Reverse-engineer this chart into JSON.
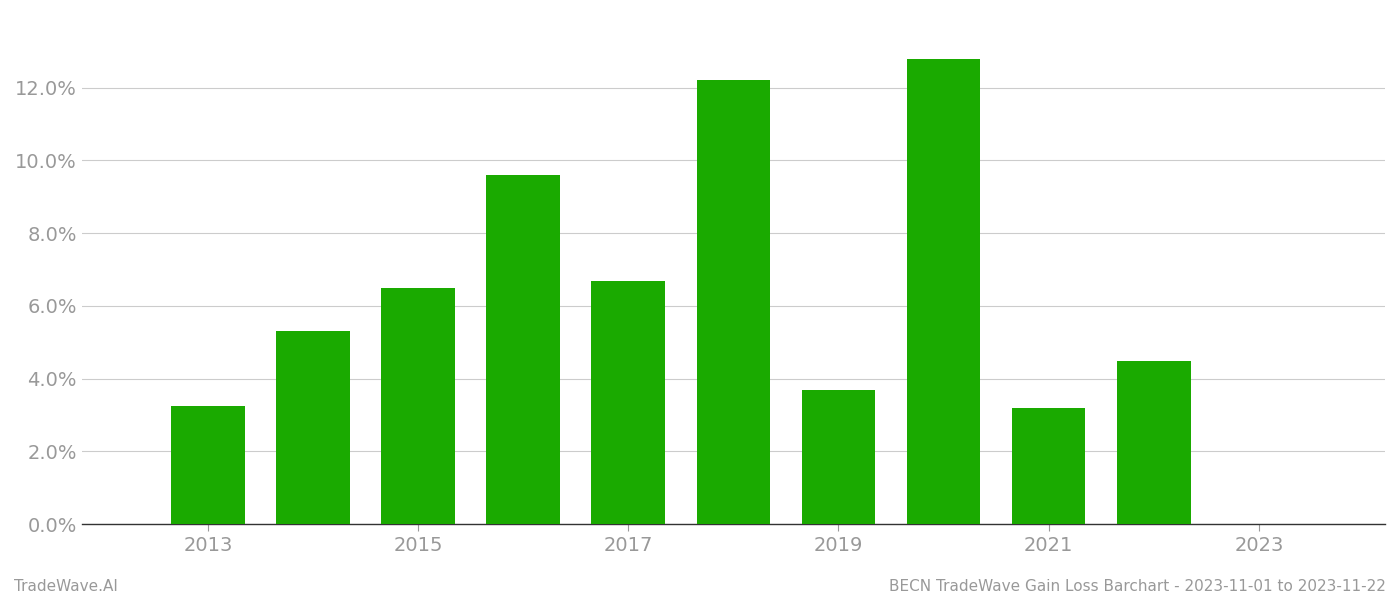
{
  "years": [
    2013,
    2014,
    2015,
    2016,
    2017,
    2018,
    2019,
    2020,
    2021,
    2022
  ],
  "values": [
    0.0325,
    0.053,
    0.065,
    0.096,
    0.067,
    0.122,
    0.037,
    0.128,
    0.032,
    0.045
  ],
  "bar_color": "#1aaa00",
  "background_color": "#ffffff",
  "ylabel_color": "#999999",
  "xlabel_color": "#999999",
  "grid_color": "#cccccc",
  "axis_color": "#333333",
  "ylim": [
    0,
    0.14
  ],
  "yticks": [
    0.0,
    0.02,
    0.04,
    0.06,
    0.08,
    0.1,
    0.12
  ],
  "xtick_positions": [
    2013,
    2015,
    2017,
    2019,
    2021,
    2023
  ],
  "xtick_labels": [
    "2013",
    "2015",
    "2017",
    "2019",
    "2021",
    "2023"
  ],
  "xlim_left": 2011.8,
  "xlim_right": 2024.2,
  "footer_left": "TradeWave.AI",
  "footer_right": "BECN TradeWave Gain Loss Barchart - 2023-11-01 to 2023-11-22",
  "footer_color": "#999999",
  "footer_fontsize": 11,
  "tick_fontsize": 14,
  "bar_width": 0.7
}
